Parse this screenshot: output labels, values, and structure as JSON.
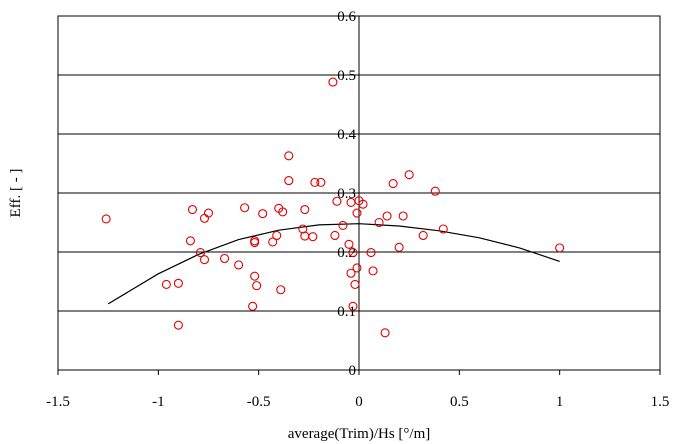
{
  "chart_data": {
    "type": "scatter",
    "title": "",
    "xlabel": "average(Trim)/Hs [°/m]",
    "ylabel": "Eff. [ - ]",
    "xlim": [
      -1.5,
      1.5
    ],
    "ylim": [
      0,
      0.6
    ],
    "xticks": [
      -1.5,
      -1,
      -0.5,
      0,
      0.5,
      1,
      1.5
    ],
    "yticks": [
      0,
      0.1,
      0.2,
      0.3,
      0.4,
      0.5,
      0.6
    ],
    "xtick_labels": [
      "-1.5",
      "-1",
      "-0.5",
      "0",
      "0.5",
      "1",
      "1.5"
    ],
    "ytick_labels": [
      "0",
      "0.1",
      "0.2",
      "0.3",
      "0.4",
      "0.5",
      "0.6"
    ],
    "grid": "horizontal",
    "legend": "none",
    "marker_color": "#e00000",
    "line_color": "#000000",
    "series": [
      {
        "kind": "scatter",
        "points": [
          [
            -1.26,
            0.256
          ],
          [
            -0.96,
            0.145
          ],
          [
            -0.9,
            0.147
          ],
          [
            -0.9,
            0.076
          ],
          [
            -0.83,
            0.272
          ],
          [
            -0.84,
            0.219
          ],
          [
            -0.79,
            0.199
          ],
          [
            -0.77,
            0.257
          ],
          [
            -0.75,
            0.266
          ],
          [
            -0.77,
            0.187
          ],
          [
            -0.67,
            0.189
          ],
          [
            -0.6,
            0.178
          ],
          [
            -0.57,
            0.275
          ],
          [
            -0.52,
            0.219
          ],
          [
            -0.52,
            0.216
          ],
          [
            -0.52,
            0.159
          ],
          [
            -0.51,
            0.143
          ],
          [
            -0.53,
            0.108
          ],
          [
            -0.48,
            0.265
          ],
          [
            -0.43,
            0.217
          ],
          [
            -0.41,
            0.228
          ],
          [
            -0.4,
            0.274
          ],
          [
            -0.38,
            0.268
          ],
          [
            -0.39,
            0.136
          ],
          [
            -0.35,
            0.363
          ],
          [
            -0.35,
            0.321
          ],
          [
            -0.27,
            0.272
          ],
          [
            -0.28,
            0.239
          ],
          [
            -0.27,
            0.227
          ],
          [
            -0.23,
            0.226
          ],
          [
            -0.22,
            0.318
          ],
          [
            -0.19,
            0.318
          ],
          [
            -0.13,
            0.488
          ],
          [
            -0.11,
            0.286
          ],
          [
            -0.12,
            0.228
          ],
          [
            -0.08,
            0.245
          ],
          [
            -0.05,
            0.213
          ],
          [
            -0.04,
            0.284
          ],
          [
            -0.04,
            0.164
          ],
          [
            -0.03,
            0.199
          ],
          [
            -0.02,
            0.145
          ],
          [
            -0.01,
            0.266
          ],
          [
            -0.01,
            0.173
          ],
          [
            0.0,
            0.287
          ],
          [
            0.02,
            0.281
          ],
          [
            -0.03,
            0.108
          ],
          [
            0.06,
            0.199
          ],
          [
            0.07,
            0.168
          ],
          [
            0.1,
            0.25
          ],
          [
            0.13,
            0.063
          ],
          [
            0.14,
            0.261
          ],
          [
            0.17,
            0.316
          ],
          [
            0.2,
            0.208
          ],
          [
            0.22,
            0.261
          ],
          [
            0.25,
            0.331
          ],
          [
            0.32,
            0.228
          ],
          [
            0.38,
            0.303
          ],
          [
            0.42,
            0.239
          ],
          [
            1.0,
            0.207
          ]
        ]
      },
      {
        "kind": "line",
        "points": [
          [
            -1.25,
            0.112
          ],
          [
            -1.0,
            0.163
          ],
          [
            -0.8,
            0.196
          ],
          [
            -0.6,
            0.221
          ],
          [
            -0.4,
            0.237
          ],
          [
            -0.2,
            0.246
          ],
          [
            0.0,
            0.248
          ],
          [
            0.2,
            0.244
          ],
          [
            0.4,
            0.236
          ],
          [
            0.6,
            0.224
          ],
          [
            0.8,
            0.207
          ],
          [
            1.0,
            0.184
          ]
        ]
      }
    ]
  }
}
